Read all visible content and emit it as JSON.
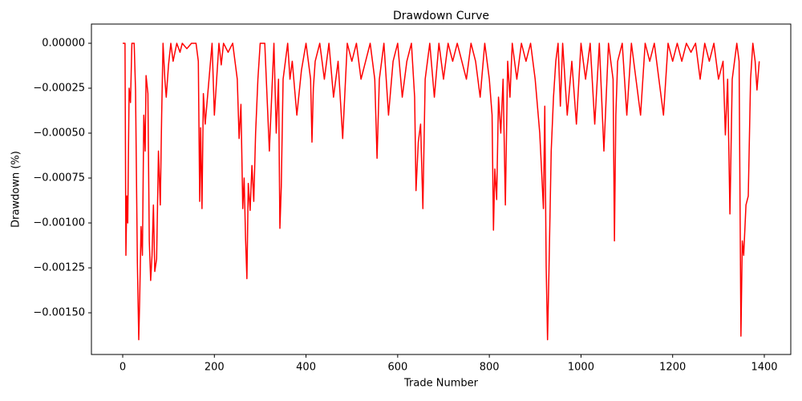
{
  "chart_data": {
    "type": "line",
    "title": "Drawdown Curve",
    "x_label": "Trade Number",
    "y_label": "Drawdown (%)",
    "color": "#ff0000",
    "x": [
      0,
      5,
      7,
      9,
      11,
      14,
      17,
      20,
      25,
      28,
      32,
      35,
      37,
      40,
      43,
      46,
      49,
      51,
      55,
      58,
      61,
      64,
      67,
      70,
      74,
      78,
      82,
      85,
      88,
      92,
      95,
      100,
      105,
      110,
      118,
      125,
      130,
      140,
      150,
      160,
      165,
      168,
      170,
      173,
      176,
      180,
      185,
      190,
      195,
      200,
      205,
      210,
      215,
      220,
      230,
      240,
      250,
      254,
      258,
      262,
      265,
      268,
      271,
      274,
      278,
      282,
      286,
      290,
      295,
      300,
      310,
      320,
      325,
      330,
      335,
      340,
      343,
      346,
      350,
      355,
      360,
      365,
      370,
      380,
      390,
      400,
      405,
      410,
      413,
      416,
      420,
      430,
      440,
      450,
      460,
      470,
      480,
      490,
      500,
      510,
      520,
      530,
      540,
      550,
      555,
      560,
      570,
      580,
      590,
      600,
      610,
      620,
      630,
      637,
      640,
      645,
      650,
      655,
      660,
      670,
      680,
      690,
      700,
      710,
      720,
      730,
      740,
      750,
      760,
      770,
      780,
      790,
      800,
      806,
      809,
      812,
      816,
      820,
      825,
      830,
      835,
      840,
      845,
      850,
      860,
      870,
      880,
      890,
      900,
      910,
      918,
      921,
      924,
      927,
      930,
      935,
      940,
      945,
      950,
      955,
      960,
      970,
      980,
      990,
      1000,
      1010,
      1020,
      1030,
      1040,
      1050,
      1060,
      1070,
      1073,
      1076,
      1080,
      1090,
      1100,
      1110,
      1120,
      1130,
      1140,
      1150,
      1160,
      1170,
      1180,
      1190,
      1200,
      1210,
      1220,
      1230,
      1240,
      1250,
      1260,
      1270,
      1280,
      1290,
      1300,
      1310,
      1315,
      1320,
      1325,
      1330,
      1340,
      1345,
      1349,
      1352,
      1355,
      1360,
      1365,
      1370,
      1375,
      1380,
      1384,
      1389
    ],
    "values": [
      0,
      0,
      -0.00118,
      -0.00085,
      -0.001,
      -0.00025,
      -0.00033,
      0,
      0,
      -0.00026,
      -0.00122,
      -0.00165,
      -0.00143,
      -0.00102,
      -0.00118,
      -0.0004,
      -0.0006,
      -0.00018,
      -0.00028,
      -0.0011,
      -0.00132,
      -0.00118,
      -0.0009,
      -0.00127,
      -0.0012,
      -0.0006,
      -0.0009,
      -0.0004,
      0,
      -0.0002,
      -0.0003,
      -0.00012,
      0,
      -0.0001,
      0,
      -5e-05,
      0,
      -3e-05,
      0,
      0,
      -0.0001,
      -0.00088,
      -0.00047,
      -0.00092,
      -0.00028,
      -0.00045,
      -0.0003,
      -0.00015,
      0,
      -0.0004,
      -0.0002,
      0,
      -0.00012,
      0,
      -5e-05,
      0,
      -0.0002,
      -0.00053,
      -0.00034,
      -0.00092,
      -0.00075,
      -0.00108,
      -0.00131,
      -0.00078,
      -0.00093,
      -0.00068,
      -0.00088,
      -0.0005,
      -0.0002,
      0,
      0,
      -0.0006,
      -0.0003,
      0,
      -0.0005,
      -0.0002,
      -0.00103,
      -0.0008,
      -0.0002,
      -0.0001,
      0,
      -0.0002,
      -0.0001,
      -0.0004,
      -0.00015,
      0,
      -0.0001,
      -0.0002,
      -0.00055,
      -0.00025,
      -0.0001,
      0,
      -0.0002,
      0,
      -0.0003,
      -0.0001,
      -0.00053,
      0,
      -0.0001,
      0,
      -0.0002,
      -0.0001,
      0,
      -0.0002,
      -0.00064,
      -0.0002,
      0,
      -0.0004,
      -0.0001,
      0,
      -0.0003,
      -0.0001,
      0,
      -0.0003,
      -0.00082,
      -0.00055,
      -0.00045,
      -0.00092,
      -0.0002,
      0,
      -0.0003,
      0,
      -0.0002,
      0,
      -0.0001,
      0,
      -0.0001,
      -0.0002,
      0,
      -0.0001,
      -0.0003,
      0,
      -0.0002,
      -0.0004,
      -0.00104,
      -0.0007,
      -0.00087,
      -0.0003,
      -0.0005,
      -0.0002,
      -0.0009,
      -0.0001,
      -0.0003,
      0,
      -0.0002,
      0,
      -0.0001,
      0,
      -0.0002,
      -0.0005,
      -0.00092,
      -0.00035,
      -0.00124,
      -0.00165,
      -0.00128,
      -0.0006,
      -0.0003,
      -0.0001,
      0,
      -0.00035,
      0,
      -0.0004,
      -0.0001,
      -0.00045,
      0,
      -0.0002,
      0,
      -0.00045,
      0,
      -0.0006,
      0,
      -0.0002,
      -0.0011,
      -0.0004,
      -0.0001,
      0,
      -0.0004,
      0,
      -0.0002,
      -0.0004,
      0,
      -0.0001,
      0,
      -0.0002,
      -0.0004,
      0,
      -0.0001,
      0,
      -0.0001,
      0,
      -5e-05,
      0,
      -0.0002,
      0,
      -0.0001,
      0,
      -0.0002,
      -0.0001,
      -0.00051,
      -0.0002,
      -0.00095,
      -0.0002,
      0,
      -0.0001,
      -0.00163,
      -0.0011,
      -0.00118,
      -0.0009,
      -0.00085,
      -0.0002,
      0,
      -0.0001,
      -0.00026,
      -0.0001
    ],
    "xlim": [
      -68.25,
      1457.75
    ],
    "ylim": [
      -0.001732,
      0.000107
    ],
    "xticks": [
      0,
      200,
      400,
      600,
      800,
      1000,
      1200,
      1400
    ],
    "yticks": [
      {
        "value": 0,
        "label": "0.00000"
      },
      {
        "value": -0.00025,
        "label": "−0.00025"
      },
      {
        "value": -0.0005,
        "label": "−0.00050"
      },
      {
        "value": -0.00075,
        "label": "−0.00075"
      },
      {
        "value": -0.001,
        "label": "−0.00100"
      },
      {
        "value": -0.00125,
        "label": "−0.00125"
      },
      {
        "value": -0.0015,
        "label": "−0.00150"
      }
    ],
    "grid": false
  }
}
